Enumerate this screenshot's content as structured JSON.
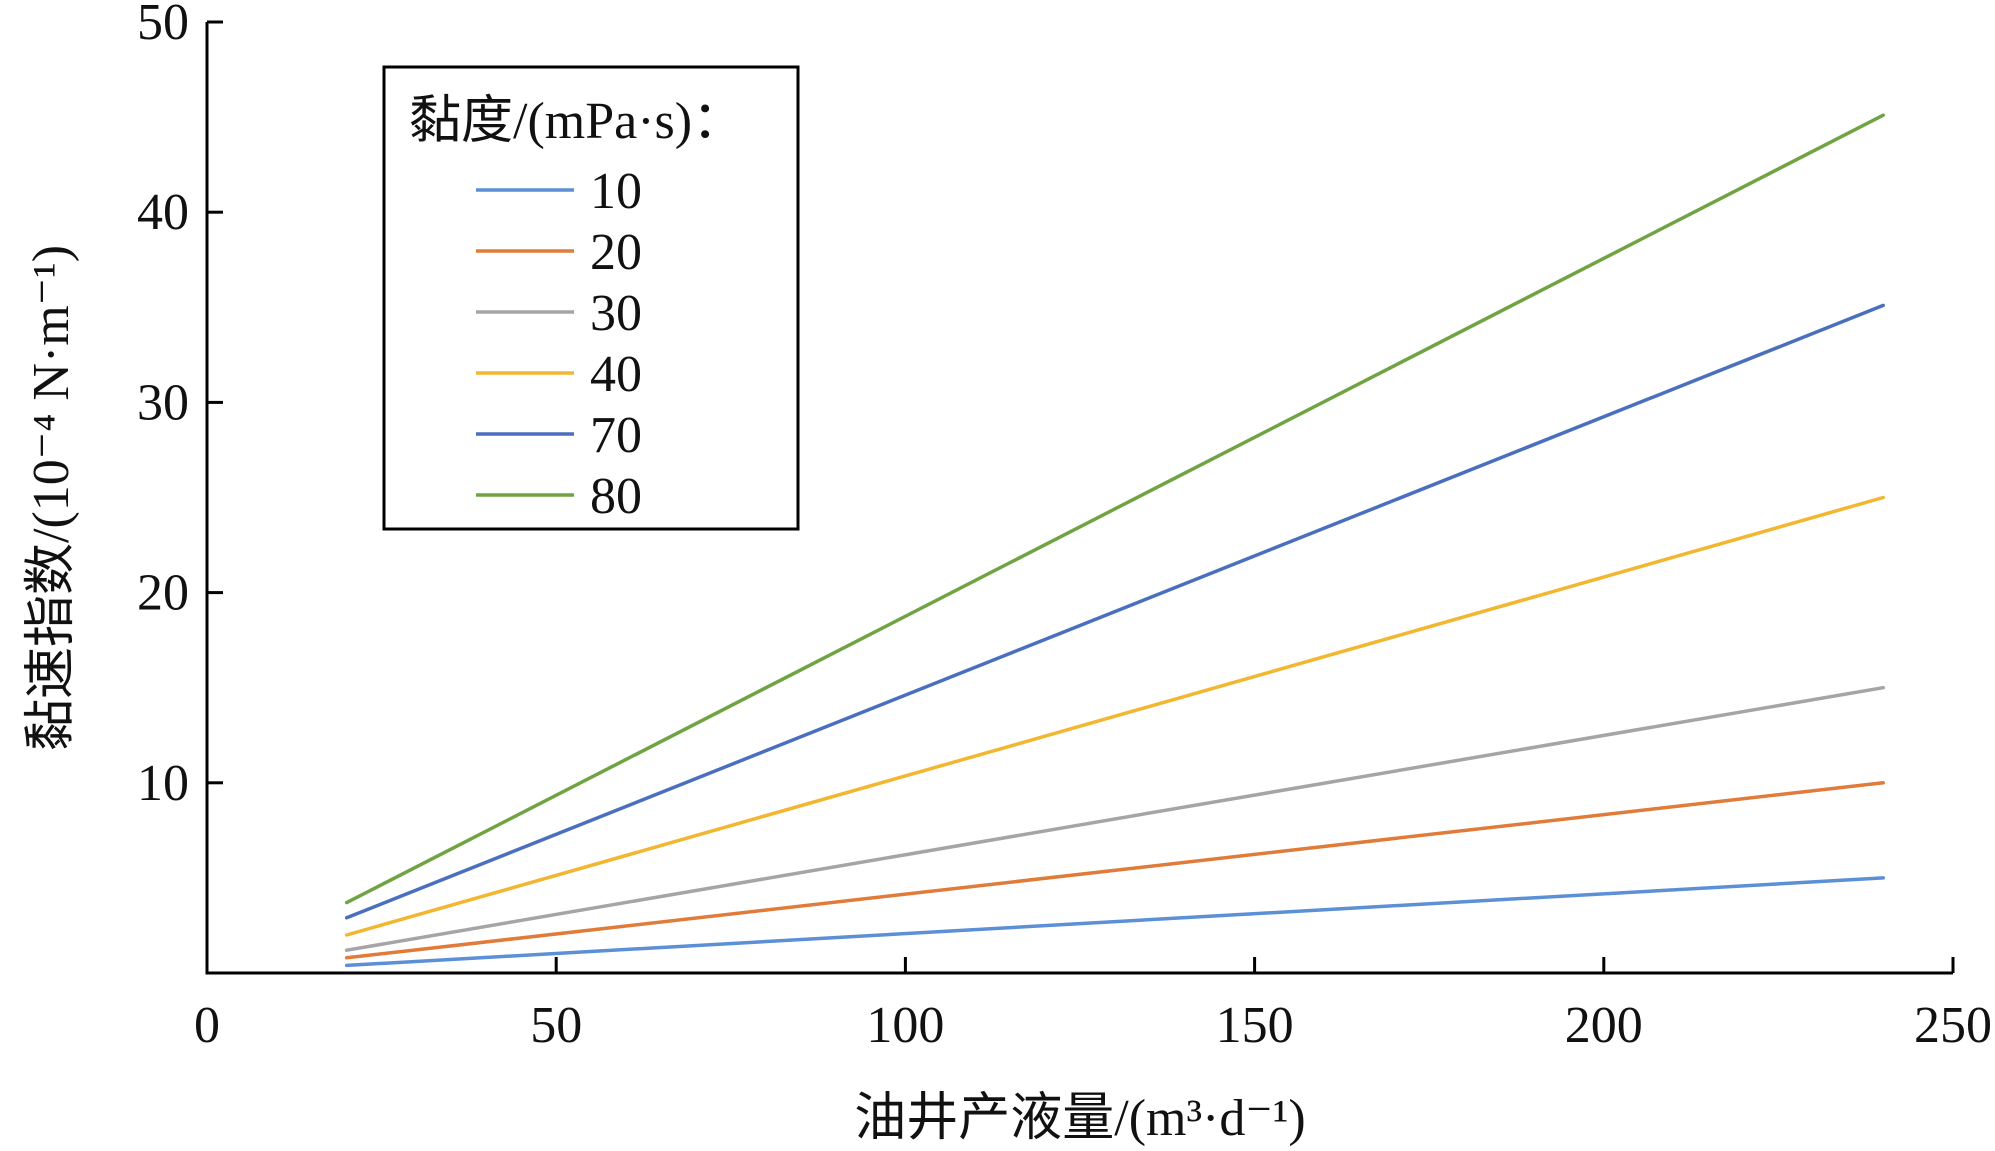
{
  "chart_data": {
    "type": "line",
    "xlabel": "油井产液量/(m³·d⁻¹)",
    "ylabel": "黏速指数/(10⁻⁴ N·m⁻¹)",
    "xlim": [
      0,
      250
    ],
    "ylim": [
      0,
      50
    ],
    "x_ticks": [
      "0",
      "50",
      "100",
      "150",
      "200",
      "250"
    ],
    "y_ticks": [
      "10",
      "20",
      "30",
      "40",
      "50"
    ],
    "grid": false,
    "legend": {
      "title": "黏度/(mPa·s)：",
      "position": "top-left"
    },
    "series": [
      {
        "name": "10",
        "color": "#5b8fd6",
        "x": [
          20,
          240
        ],
        "y": [
          0.4,
          5.0
        ]
      },
      {
        "name": "20",
        "color": "#e07b39",
        "x": [
          20,
          240
        ],
        "y": [
          0.8,
          10.0
        ]
      },
      {
        "name": "30",
        "color": "#a5a5a5",
        "x": [
          20,
          240
        ],
        "y": [
          1.2,
          15.0
        ]
      },
      {
        "name": "40",
        "color": "#f2b630",
        "x": [
          20,
          240
        ],
        "y": [
          2.0,
          25.0
        ]
      },
      {
        "name": "70",
        "color": "#4a6fbf",
        "x": [
          20,
          240
        ],
        "y": [
          2.9,
          35.1
        ]
      },
      {
        "name": "80",
        "color": "#70a443",
        "x": [
          20,
          240
        ],
        "y": [
          3.7,
          45.1
        ]
      }
    ]
  }
}
